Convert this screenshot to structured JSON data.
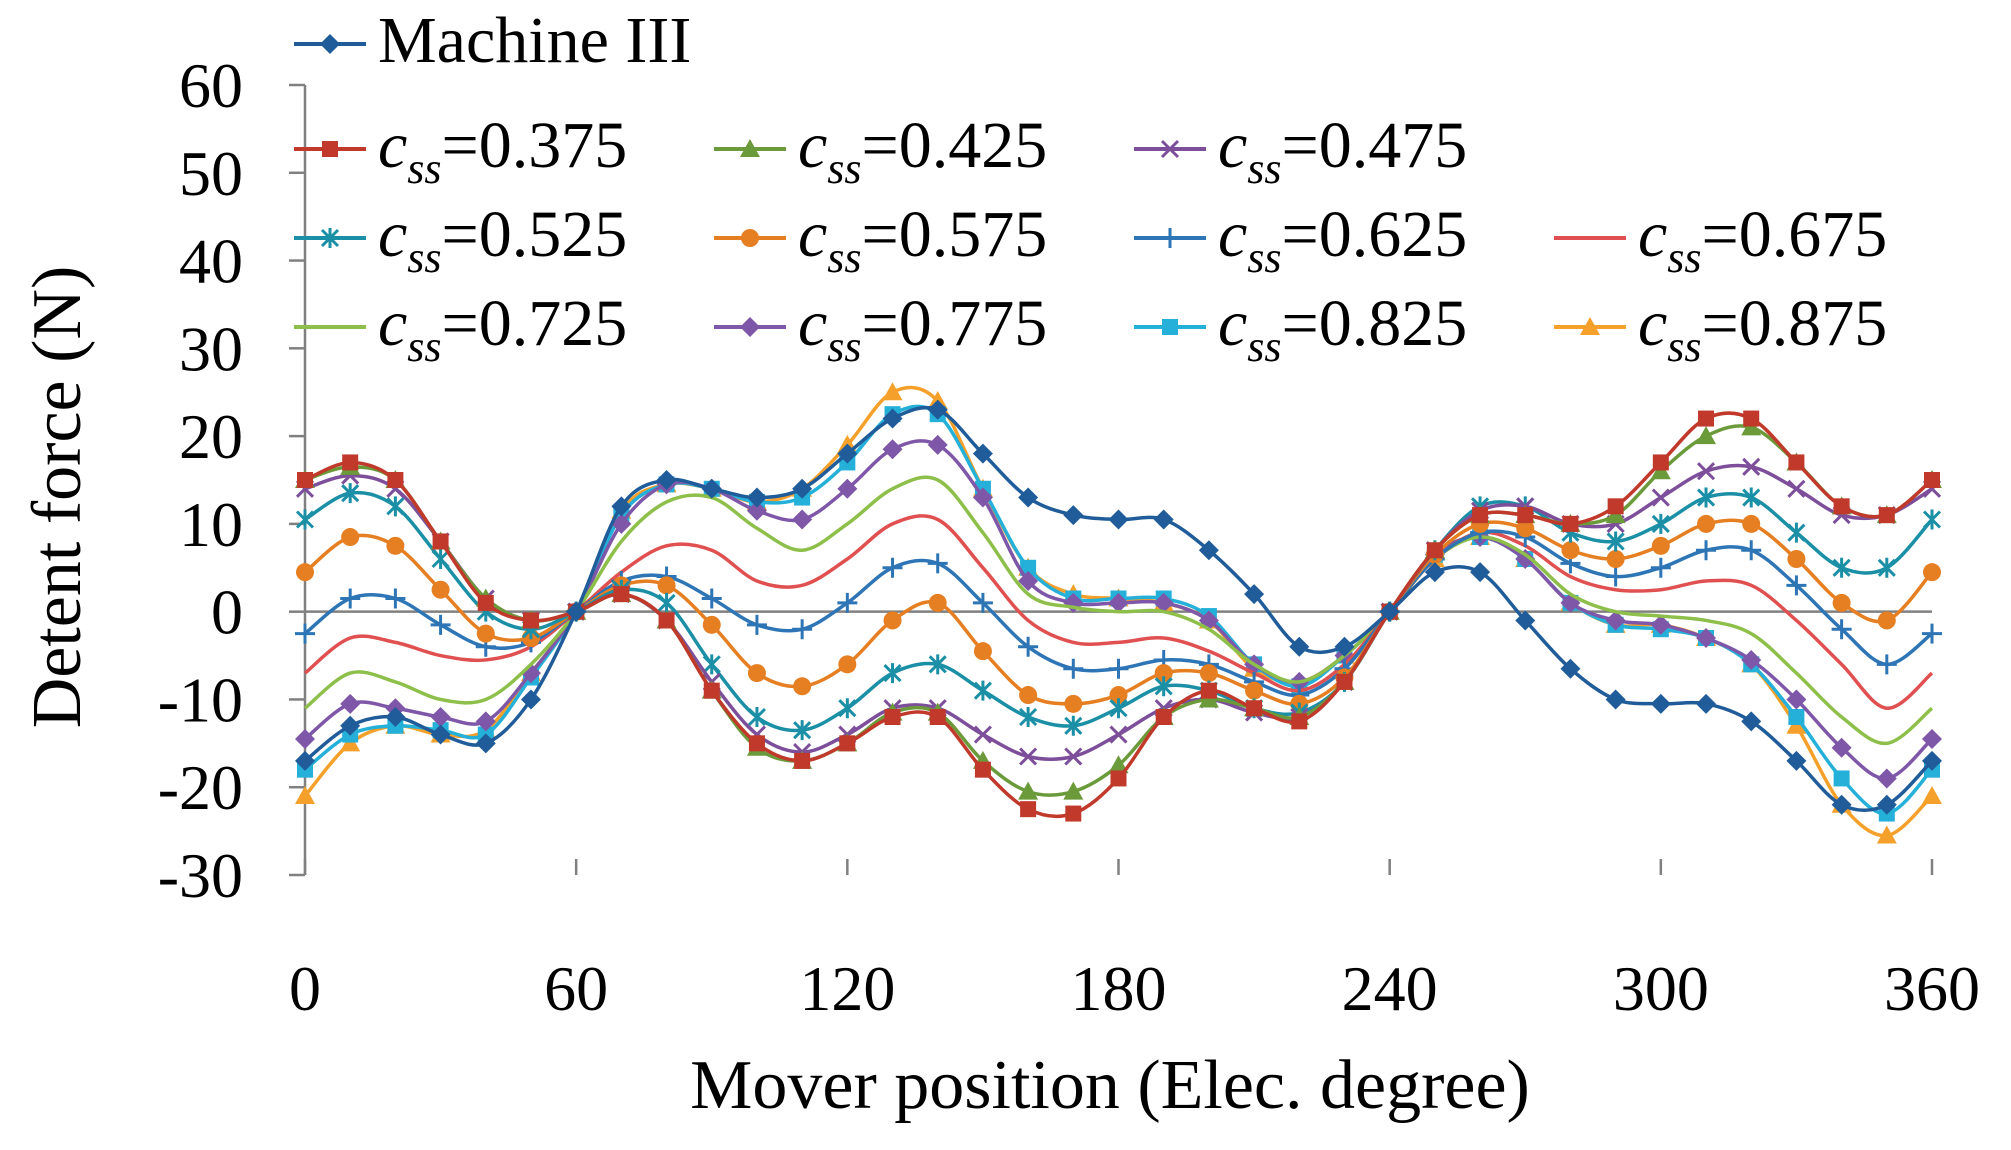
{
  "chart_data": {
    "type": "line",
    "title": "",
    "xlabel": "Mover position (Elec. degree)",
    "ylabel": "Detent force (N)",
    "xlim": [
      0,
      360
    ],
    "ylim": [
      -30,
      60
    ],
    "xticks": [
      0,
      60,
      120,
      180,
      240,
      300,
      360
    ],
    "yticks": [
      -30,
      -20,
      -10,
      0,
      10,
      20,
      30,
      40,
      50,
      60
    ],
    "grid": false,
    "legend_position": "top",
    "series": [
      {
        "name": "Machine III",
        "label": "Machine III",
        "color": "#1f5c99",
        "marker": "diamond",
        "x": [
          0,
          10,
          20,
          30,
          40,
          50,
          60,
          70,
          80,
          90,
          100,
          110,
          120,
          130,
          140,
          150,
          160,
          170,
          180,
          190,
          200,
          210,
          220,
          230,
          240,
          250,
          260,
          270,
          280,
          290,
          300,
          310,
          320,
          330,
          340,
          350,
          360
        ],
        "y": [
          -17,
          -13,
          -12,
          -14,
          -15,
          -10,
          0,
          12,
          15,
          14,
          13,
          14,
          18,
          22,
          23,
          18,
          13,
          11,
          10.5,
          10.5,
          7,
          2,
          -4,
          -4,
          0,
          4.5,
          4.5,
          -1,
          -6.5,
          -10,
          -10.5,
          -10.5,
          -12.5,
          -17,
          -22,
          -22,
          -17
        ]
      },
      {
        "name": "css=0.375",
        "label": "=0.375",
        "color": "#c0392b",
        "marker": "square",
        "x": [
          0,
          10,
          20,
          30,
          40,
          50,
          60,
          70,
          80,
          90,
          100,
          110,
          120,
          130,
          140,
          150,
          160,
          170,
          180,
          190,
          200,
          210,
          220,
          230,
          240,
          250,
          260,
          270,
          280,
          290,
          300,
          310,
          320,
          330,
          340,
          350,
          360
        ],
        "y": [
          15,
          17,
          15,
          8,
          1,
          -1,
          0,
          2,
          -1,
          -9,
          -15,
          -17,
          -15,
          -12,
          -12,
          -18,
          -22.5,
          -23,
          -19,
          -12,
          -9,
          -11,
          -12.5,
          -8,
          0,
          7,
          11,
          11,
          10,
          12,
          17,
          22,
          22,
          17,
          12,
          11,
          15
        ]
      },
      {
        "name": "css=0.425",
        "label": "=0.425",
        "color": "#6b9a3a",
        "marker": "triangle",
        "x": [
          0,
          10,
          20,
          30,
          40,
          50,
          60,
          70,
          80,
          90,
          100,
          110,
          120,
          130,
          140,
          150,
          160,
          170,
          180,
          190,
          200,
          210,
          220,
          230,
          240,
          250,
          260,
          270,
          280,
          290,
          300,
          310,
          320,
          330,
          340,
          350,
          360
        ],
        "y": [
          15,
          16.5,
          15,
          8,
          1.5,
          -1,
          0,
          2,
          -1,
          -9,
          -15.5,
          -17,
          -15,
          -11.5,
          -11.5,
          -17,
          -20.5,
          -20.5,
          -17.5,
          -12,
          -10,
          -11,
          -12,
          -8,
          0,
          7,
          11,
          11,
          10,
          11,
          16,
          20,
          21,
          17,
          12,
          11,
          15
        ]
      },
      {
        "name": "css=0.475",
        "label": "=0.475",
        "color": "#7d4f9a",
        "marker": "x",
        "x": [
          0,
          10,
          20,
          30,
          40,
          50,
          60,
          70,
          80,
          90,
          100,
          110,
          120,
          130,
          140,
          150,
          160,
          170,
          180,
          190,
          200,
          210,
          220,
          230,
          240,
          250,
          260,
          270,
          280,
          290,
          300,
          310,
          320,
          330,
          340,
          350,
          360
        ],
        "y": [
          14,
          15.5,
          14,
          8,
          1.5,
          -1,
          0,
          2,
          -1,
          -8,
          -14,
          -16,
          -14,
          -11,
          -11,
          -14,
          -16.5,
          -16.5,
          -14,
          -11,
          -10,
          -11.5,
          -12,
          -8,
          0,
          7,
          11.5,
          12,
          10,
          10,
          13,
          16,
          16.5,
          14,
          11,
          11,
          14
        ]
      },
      {
        "name": "css=0.525",
        "label": "=0.525",
        "color": "#1a8fa6",
        "marker": "asterisk",
        "x": [
          0,
          10,
          20,
          30,
          40,
          50,
          60,
          70,
          80,
          90,
          100,
          110,
          120,
          130,
          140,
          150,
          160,
          170,
          180,
          190,
          200,
          210,
          220,
          230,
          240,
          250,
          260,
          270,
          280,
          290,
          300,
          310,
          320,
          330,
          340,
          350,
          360
        ],
        "y": [
          10.5,
          13.5,
          12,
          6,
          0,
          -2,
          0,
          2.5,
          1,
          -6,
          -12,
          -13.5,
          -11,
          -7,
          -6,
          -9,
          -12,
          -13,
          -11,
          -8.5,
          -9,
          -11,
          -11.5,
          -8,
          0,
          7,
          12,
          12,
          9,
          8,
          10,
          13,
          13,
          9,
          5,
          5,
          10.5
        ]
      },
      {
        "name": "css=0.575",
        "label": "=0.575",
        "color": "#e67e22",
        "marker": "circle",
        "x": [
          0,
          10,
          20,
          30,
          40,
          50,
          60,
          70,
          80,
          90,
          100,
          110,
          120,
          130,
          140,
          150,
          160,
          170,
          180,
          190,
          200,
          210,
          220,
          230,
          240,
          250,
          260,
          270,
          280,
          290,
          300,
          310,
          320,
          330,
          340,
          350,
          360
        ],
        "y": [
          4.5,
          8.5,
          7.5,
          2.5,
          -2.5,
          -3,
          0,
          3,
          3,
          -1.5,
          -7,
          -8.5,
          -6,
          -1,
          1,
          -4.5,
          -9.5,
          -10.5,
          -9.5,
          -7,
          -7,
          -9,
          -10.5,
          -7.5,
          0,
          6.5,
          10,
          9.5,
          7,
          6,
          7.5,
          10,
          10,
          6,
          1,
          -1,
          4.5
        ]
      },
      {
        "name": "css=0.625",
        "label": "=0.625",
        "color": "#2e75b6",
        "marker": "plus",
        "x": [
          0,
          10,
          20,
          30,
          40,
          50,
          60,
          70,
          80,
          90,
          100,
          110,
          120,
          130,
          140,
          150,
          160,
          170,
          180,
          190,
          200,
          210,
          220,
          230,
          240,
          250,
          260,
          270,
          280,
          290,
          300,
          310,
          320,
          330,
          340,
          350,
          360
        ],
        "y": [
          -2.5,
          1.5,
          1.5,
          -1.5,
          -4,
          -3.5,
          0,
          3.5,
          4,
          1.5,
          -1.5,
          -2,
          1,
          5,
          5.5,
          1,
          -4,
          -6.5,
          -6.5,
          -5.5,
          -6,
          -8,
          -9.5,
          -6.5,
          0,
          6,
          9,
          8.5,
          5.5,
          4,
          5,
          7,
          7,
          3,
          -2,
          -6,
          -2.5
        ]
      },
      {
        "name": "css=0.675",
        "label": "=0.675",
        "color": "#e05050",
        "marker": "none",
        "x": [
          0,
          10,
          20,
          30,
          40,
          50,
          60,
          70,
          80,
          90,
          100,
          110,
          120,
          130,
          140,
          150,
          160,
          170,
          180,
          190,
          200,
          210,
          220,
          230,
          240,
          250,
          260,
          270,
          280,
          290,
          300,
          310,
          320,
          330,
          340,
          350,
          360
        ],
        "y": [
          -7,
          -3,
          -3.5,
          -5,
          -5.5,
          -4,
          0,
          4.5,
          7.5,
          7,
          3.5,
          3,
          6,
          10,
          10.5,
          5,
          -1,
          -3.5,
          -3.5,
          -3,
          -4.5,
          -7,
          -9,
          -6,
          0,
          6,
          9,
          7.5,
          4,
          2.5,
          2.5,
          3.5,
          3,
          -1,
          -6,
          -11,
          -7
        ]
      },
      {
        "name": "css=0.725",
        "label": "=0.725",
        "color": "#8dbf4a",
        "marker": "none",
        "x": [
          0,
          10,
          20,
          30,
          40,
          50,
          60,
          70,
          80,
          90,
          100,
          110,
          120,
          130,
          140,
          150,
          160,
          170,
          180,
          190,
          200,
          210,
          220,
          230,
          240,
          250,
          260,
          270,
          280,
          290,
          300,
          310,
          320,
          330,
          340,
          350,
          360
        ],
        "y": [
          -11,
          -7,
          -8,
          -10,
          -10,
          -6,
          0,
          8,
          12.5,
          13,
          9.5,
          7,
          10,
          14,
          15,
          9,
          2,
          0.5,
          0,
          0,
          -2,
          -6,
          -8,
          -5,
          0,
          6,
          8.5,
          6.5,
          2,
          0,
          -0.5,
          -1,
          -2.5,
          -7,
          -12,
          -15,
          -11
        ]
      },
      {
        "name": "css=0.775",
        "label": "=0.775",
        "color": "#7e57a8",
        "marker": "diamond",
        "x": [
          0,
          10,
          20,
          30,
          40,
          50,
          60,
          70,
          80,
          90,
          100,
          110,
          120,
          130,
          140,
          150,
          160,
          170,
          180,
          190,
          200,
          210,
          220,
          230,
          240,
          250,
          260,
          270,
          280,
          290,
          300,
          310,
          320,
          330,
          340,
          350,
          360
        ],
        "y": [
          -14.5,
          -10.5,
          -11,
          -12,
          -12.5,
          -7,
          0,
          10,
          14.5,
          14,
          11.5,
          10.5,
          14,
          18.5,
          19,
          13,
          3.5,
          1,
          1,
          1,
          -1,
          -6,
          -8,
          -5,
          0,
          6.5,
          8.5,
          6,
          1,
          -1,
          -1.5,
          -3,
          -5.5,
          -10,
          -15.5,
          -19,
          -14.5
        ]
      },
      {
        "name": "css=0.825",
        "label": "=0.825",
        "color": "#24b0d9",
        "marker": "square",
        "x": [
          0,
          10,
          20,
          30,
          40,
          50,
          60,
          70,
          80,
          90,
          100,
          110,
          120,
          130,
          140,
          150,
          160,
          170,
          180,
          190,
          200,
          210,
          220,
          230,
          240,
          250,
          260,
          270,
          280,
          290,
          300,
          310,
          320,
          330,
          340,
          350,
          360
        ],
        "y": [
          -18,
          -14,
          -13,
          -13.5,
          -14,
          -7.5,
          0,
          11,
          14.5,
          14,
          12.5,
          13,
          17,
          22.5,
          22.5,
          14,
          5,
          1.5,
          1.5,
          1.5,
          -0.5,
          -6,
          -8.5,
          -5,
          0,
          6.5,
          8.5,
          6,
          1,
          -1.5,
          -2,
          -3,
          -6,
          -12,
          -19,
          -23,
          -18
        ]
      },
      {
        "name": "css=0.875",
        "label": "=0.875",
        "color": "#f5a02a",
        "marker": "triangle",
        "x": [
          0,
          10,
          20,
          30,
          40,
          50,
          60,
          70,
          80,
          90,
          100,
          110,
          120,
          130,
          140,
          150,
          160,
          170,
          180,
          190,
          200,
          210,
          220,
          230,
          240,
          250,
          260,
          270,
          280,
          290,
          300,
          310,
          320,
          330,
          340,
          350,
          360
        ],
        "y": [
          -21,
          -15,
          -13,
          -14,
          -13.5,
          -7,
          0,
          11.5,
          14.5,
          14,
          12.5,
          14,
          19,
          25,
          24,
          14,
          5,
          2,
          1.5,
          1,
          -1,
          -6.5,
          -8,
          -5,
          0,
          6,
          8.5,
          6,
          1,
          -1.5,
          -1.5,
          -3,
          -6,
          -13,
          -22,
          -25.5,
          -21
        ]
      }
    ]
  }
}
